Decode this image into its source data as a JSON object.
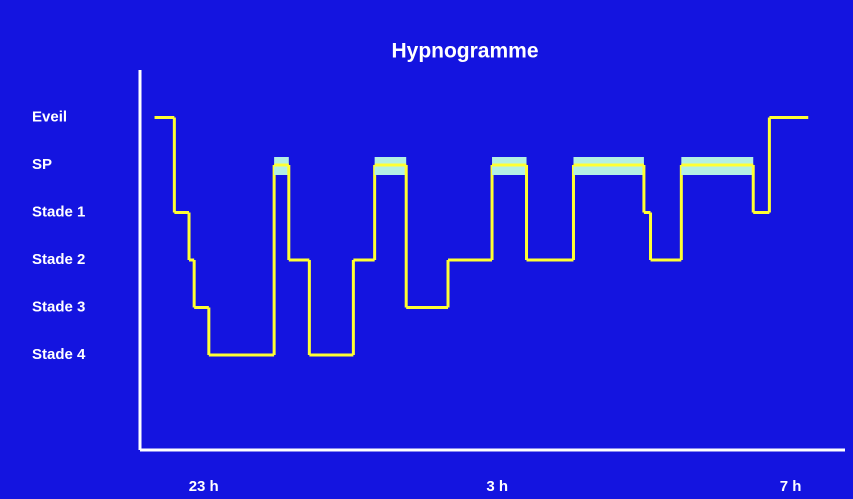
{
  "chart_data": {
    "type": "step",
    "title": "Hypnogramme",
    "x": [
      22.33,
      22.6,
      22.8,
      22.87,
      23.07,
      23.96,
      24.16,
      24.44,
      25.04,
      25.33,
      25.76,
      26.33,
      26.93,
      27.4,
      28.04,
      29.0,
      29.09,
      29.51,
      30.49,
      30.71,
      31.24
    ],
    "values": [
      0,
      2,
      3,
      4,
      5,
      1,
      3,
      5,
      3,
      1,
      4,
      3,
      1,
      3,
      1,
      2,
      3,
      1,
      2,
      0,
      0
    ],
    "color": "#ffff33",
    "highlight_level": 1,
    "highlight_color": "#b4f0e4",
    "background": "#1414e0",
    "axis_color": "#ffffff",
    "xlim": [
      22.2,
      31.4
    ],
    "xticks": [
      {
        "value": 23,
        "label": "23 h"
      },
      {
        "value": 27,
        "label": "3 h"
      },
      {
        "value": 31,
        "label": "7 h"
      }
    ],
    "ylim": [
      -1,
      7
    ],
    "yticks": [
      {
        "value": 0,
        "label": "Eveil"
      },
      {
        "value": 1,
        "label": "SP"
      },
      {
        "value": 2,
        "label": "Stade 1"
      },
      {
        "value": 3,
        "label": "Stade 2"
      },
      {
        "value": 4,
        "label": "Stade 3"
      },
      {
        "value": 5,
        "label": "Stade 4"
      }
    ],
    "grid": false
  }
}
